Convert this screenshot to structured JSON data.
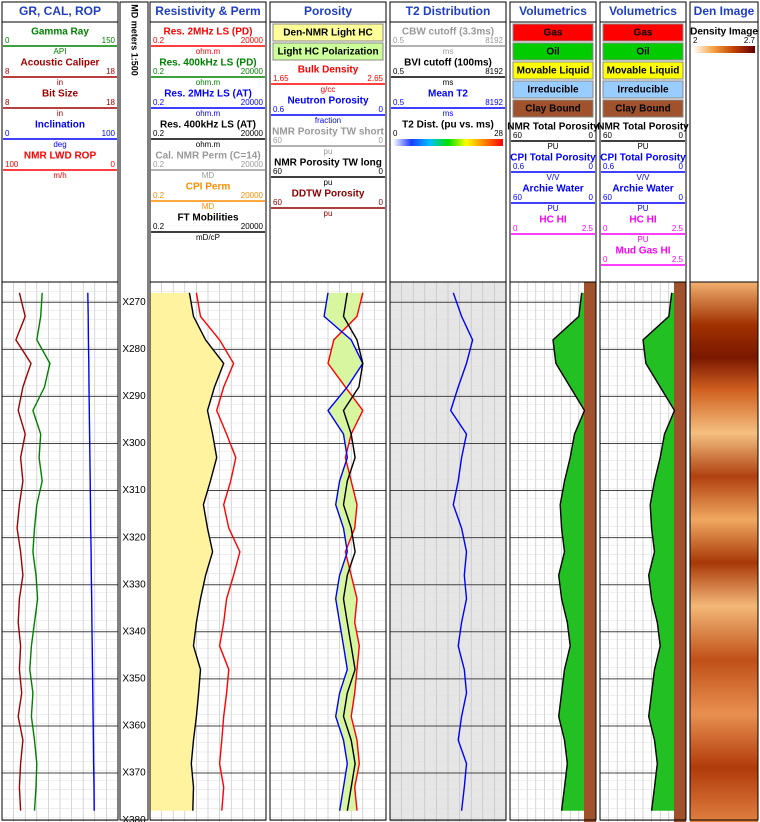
{
  "depth_axis": {
    "label": "MD meters 1:500",
    "ylim": [
      265.7,
      380.4
    ],
    "ticks": [
      {
        "value": 270,
        "label": "X270"
      },
      {
        "value": 280,
        "label": "X280"
      },
      {
        "value": 290,
        "label": "X290"
      },
      {
        "value": 300,
        "label": "X300"
      },
      {
        "value": 310,
        "label": "X310"
      },
      {
        "value": 320,
        "label": "X320"
      },
      {
        "value": 330,
        "label": "X330"
      },
      {
        "value": 340,
        "label": "X340"
      },
      {
        "value": 350,
        "label": "X350"
      },
      {
        "value": 360,
        "label": "X360"
      },
      {
        "value": 370,
        "label": "X370"
      },
      {
        "value": 380,
        "label": "X380"
      }
    ]
  },
  "depths": [
    268,
    273,
    278,
    283,
    288,
    293,
    298,
    303,
    308,
    313,
    318,
    323,
    328,
    333,
    338,
    343,
    348,
    353,
    358,
    363,
    368,
    373,
    378
  ],
  "tracks": [
    {
      "title": "GR, CAL, ROP",
      "items": [
        {
          "name": "Gamma Ray",
          "color": "#008000",
          "left": 0,
          "right": 150,
          "unit": "API",
          "values": [
            52,
            50,
            45,
            62,
            55,
            40,
            50,
            48,
            52,
            45,
            42,
            40,
            44,
            46,
            42,
            38,
            36,
            40,
            38,
            42,
            45,
            44,
            42
          ]
        },
        {
          "name": "Acoustic Caliper",
          "color": "#a00000",
          "left": 8,
          "right": 18,
          "unit": "in",
          "values": [
            9.5,
            10,
            9.2,
            10.5,
            9.8,
            9.4,
            10,
            9.6,
            9.8,
            9.5,
            9.3,
            9.6,
            9.8,
            9.5,
            9.4,
            9.6,
            9.5,
            9.7,
            9.4,
            9.8,
            9.6,
            9.5,
            9.6
          ]
        },
        {
          "name": "Bit Size",
          "color": "#a00000",
          "left": 8,
          "right": 18,
          "unit": "in"
        },
        {
          "name": "Inclination",
          "color": "#0000ff",
          "left": 0,
          "right": 100,
          "unit": "deg",
          "values": [
            74,
            74.3,
            74.5,
            74.8,
            75,
            75.3,
            75.5,
            75.8,
            76,
            76.3,
            76.5,
            76.8,
            77,
            77.3,
            77.5,
            77.8,
            78,
            78.3,
            78.5,
            78.8,
            79,
            79.3,
            79.5
          ]
        },
        {
          "name": "NMR LWD ROP",
          "color": "#ff0000",
          "left": 100,
          "right": 0,
          "unit": "m/h"
        }
      ]
    },
    {
      "title": "Resistivity & Perm",
      "items": [
        {
          "name": "Res. 2MHz LS (PD)",
          "color": "#ff0000",
          "left": 0.2,
          "right": 20000,
          "unit": "ohm.m",
          "log": true,
          "values": [
            20,
            30,
            200,
            800,
            300,
            150,
            400,
            1000,
            600,
            300,
            500,
            1500,
            800,
            400,
            300,
            200,
            500,
            400,
            300,
            250,
            200,
            300,
            250
          ]
        },
        {
          "name": "Res. 400kHz LS (PD)",
          "color": "#008000",
          "left": 0.2,
          "right": 20000,
          "unit": "ohm.m",
          "log": true
        },
        {
          "name": "Res. 2MHz LS (AT)",
          "color": "#0000ff",
          "left": 0.2,
          "right": 20000,
          "unit": "ohm.m",
          "log": true
        },
        {
          "name": "Res. 400kHz LS (AT)",
          "color": "#000000",
          "left": 0.2,
          "right": 20000,
          "unit": "ohm.m",
          "log": true,
          "values": [
            10,
            15,
            50,
            300,
            120,
            60,
            100,
            150,
            80,
            40,
            60,
            100,
            50,
            30,
            20,
            15,
            30,
            25,
            20,
            15,
            12,
            15,
            14
          ]
        },
        {
          "name": "Cal. NMR Perm (C=14)",
          "color": "#999999",
          "left": 0.2,
          "right": 20000,
          "unit": "MD",
          "log": true
        },
        {
          "name": "CPI Perm",
          "color": "#ff8c00",
          "left": 0.2,
          "right": 20000,
          "unit": "MD",
          "log": true
        },
        {
          "name": "FT Mobilities",
          "color": "#000000",
          "left": 0.2,
          "right": 20000,
          "unit": "mD/cP",
          "log": true
        }
      ]
    },
    {
      "title": "Porosity",
      "items": [
        {
          "name": "Den-NMR Light HC",
          "fill": "#ffff99"
        },
        {
          "name": "Light HC Polarization",
          "fill": "#ccff99"
        },
        {
          "name": "Bulk Density",
          "color": "#ff0000",
          "left": 1.65,
          "right": 2.65,
          "unit": "g/cc",
          "values": [
            2.45,
            2.4,
            2.2,
            2.15,
            2.3,
            2.45,
            2.35,
            2.3,
            2.35,
            2.4,
            2.38,
            2.3,
            2.35,
            2.4,
            2.38,
            2.42,
            2.4,
            2.38,
            2.35,
            2.4,
            2.42,
            2.38,
            2.4
          ]
        },
        {
          "name": "Neutron Porosity",
          "color": "#0000ff",
          "left": 0.6,
          "right": 0,
          "unit": "fraction",
          "values": [
            0.3,
            0.32,
            0.18,
            0.12,
            0.2,
            0.3,
            0.22,
            0.2,
            0.24,
            0.26,
            0.22,
            0.2,
            0.24,
            0.26,
            0.24,
            0.22,
            0.2,
            0.24,
            0.26,
            0.22,
            0.2,
            0.22,
            0.24
          ]
        },
        {
          "name": "NMR Porosity TW short",
          "color": "#999999",
          "left": 60,
          "right": 0,
          "unit": "pu"
        },
        {
          "name": "NMR Porosity TW long",
          "color": "#000000",
          "left": 60,
          "right": 0,
          "unit": "pu",
          "values": [
            20,
            22,
            15,
            12,
            14,
            22,
            18,
            16,
            20,
            22,
            18,
            16,
            20,
            22,
            20,
            18,
            16,
            20,
            22,
            18,
            16,
            18,
            20
          ]
        },
        {
          "name": "DDTW Porosity",
          "color": "#8b0000",
          "left": 60,
          "right": 0,
          "unit": "pu"
        }
      ]
    },
    {
      "title": "T2 Distribution",
      "items": [
        {
          "name": "CBW cutoff (3.3ms)",
          "color": "#999999",
          "left": 0.5,
          "right": 8192,
          "unit": "ms",
          "log": true
        },
        {
          "name": "BVI cutoff (100ms)",
          "color": "#000000",
          "left": 0.5,
          "right": 8192,
          "unit": "ms",
          "log": true
        },
        {
          "name": "Mean T2",
          "color": "#0000ff",
          "left": 0.5,
          "right": 8192,
          "unit": "ms",
          "log": true,
          "values": [
            100,
            200,
            500,
            300,
            150,
            80,
            300,
            200,
            150,
            100,
            200,
            300,
            250,
            300,
            200,
            150,
            250,
            300,
            200,
            150,
            300,
            250,
            200
          ]
        },
        {
          "name": "T2 Dist. (pu vs. ms)",
          "color": "#000000",
          "left": 0,
          "right": 28,
          "colorbar": [
            "#ffffff",
            "#1a3cff",
            "#00c0ff",
            "#00e000",
            "#ffff00",
            "#ff8000",
            "#ff0000"
          ]
        }
      ]
    },
    {
      "title": "Volumetrics",
      "items": [
        {
          "name": "Gas",
          "fill": "#ff0000"
        },
        {
          "name": "Oil",
          "fill": "#00cc00"
        },
        {
          "name": "Movable Liquid",
          "fill": "#ffff00"
        },
        {
          "name": "Irreducible",
          "fill": "#99ccff"
        },
        {
          "name": "Clay Bound",
          "fill": "#a0522d"
        },
        {
          "name": "NMR Total Porosity",
          "color": "#000000",
          "left": 60,
          "right": 0,
          "unit": "PU",
          "values": [
            10,
            12,
            30,
            28,
            18,
            8,
            15,
            18,
            22,
            25,
            24,
            22,
            26,
            24,
            20,
            18,
            22,
            24,
            26,
            22,
            20,
            22,
            24
          ]
        },
        {
          "name": "CPI Total Porosity",
          "color": "#0000ff",
          "left": 0.6,
          "right": 0,
          "unit": "V/V"
        },
        {
          "name": "Archie Water",
          "color": "#0000ff",
          "left": 60,
          "right": 0,
          "unit": "PU"
        },
        {
          "name": "HC HI",
          "color": "#ff00ff",
          "left": 0,
          "right": 2.5
        }
      ]
    },
    {
      "title": "Volumetrics",
      "items": [
        {
          "name": "Gas",
          "fill": "#ff0000"
        },
        {
          "name": "Oil",
          "fill": "#00cc00"
        },
        {
          "name": "Movable Liquid",
          "fill": "#ffff00"
        },
        {
          "name": "Irreducible",
          "fill": "#99ccff"
        },
        {
          "name": "Clay Bound",
          "fill": "#a0522d"
        },
        {
          "name": "NMR Total Porosity",
          "color": "#000000",
          "left": 60,
          "right": 0,
          "unit": "PU",
          "values": [
            10,
            12,
            30,
            28,
            18,
            8,
            15,
            18,
            22,
            25,
            24,
            22,
            26,
            24,
            20,
            18,
            22,
            24,
            26,
            22,
            20,
            22,
            24
          ]
        },
        {
          "name": "CPI Total Porosity",
          "color": "#0000ff",
          "left": 0.6,
          "right": 0,
          "unit": "V/V"
        },
        {
          "name": "Archie Water",
          "color": "#0000ff",
          "left": 60,
          "right": 0,
          "unit": "PU"
        },
        {
          "name": "HC HI",
          "color": "#ff00ff",
          "left": 0,
          "right": 2.5,
          "unit": "PU"
        },
        {
          "name": "Mud Gas HI",
          "color": "#ff00ff",
          "left": 0,
          "right": 2.5
        }
      ]
    },
    {
      "title": "Den Image",
      "items": [
        {
          "name": "Density Image",
          "color": "#000000",
          "left": 2,
          "right": 2.7,
          "colorbar": [
            "#ffffff",
            "#f5a040",
            "#c04000",
            "#600000"
          ]
        }
      ]
    }
  ]
}
